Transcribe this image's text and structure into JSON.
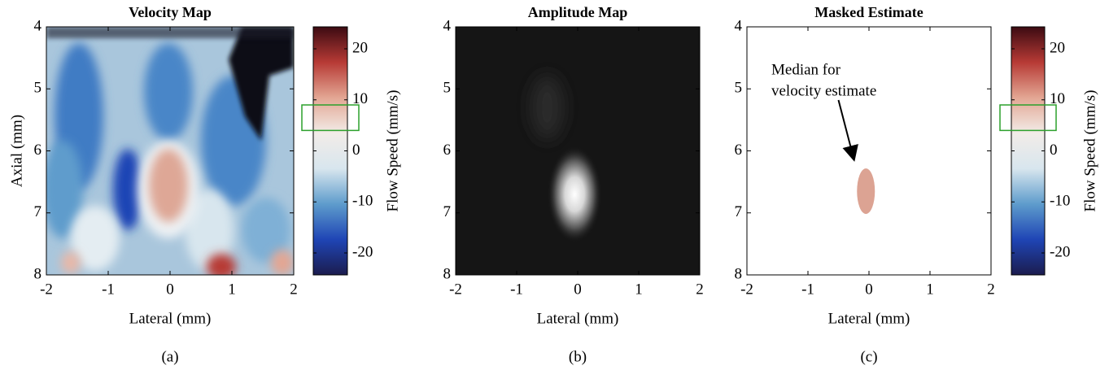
{
  "chart_data": [
    {
      "type": "heatmap",
      "title": "Velocity Map",
      "xlabel": "Lateral (mm)",
      "ylabel": "Axial (mm)",
      "xlim": [
        -2,
        2
      ],
      "ylim": [
        4,
        8
      ],
      "y_reversed": true,
      "xticks": [
        -2,
        -1,
        0,
        1,
        2
      ],
      "yticks": [
        4,
        5,
        6,
        7,
        8
      ],
      "caption": "(a)",
      "colorbar": {
        "label": "Flow Speed (mm/s)",
        "lim": [
          -24.3,
          24.3
        ],
        "ticks": [
          -20,
          -10,
          0,
          10,
          20
        ],
        "colormap": [
          "#1b1c4e",
          "#1f45b5",
          "#5e9ccc",
          "#d8e6ee",
          "#f2ece8",
          "#e3a693",
          "#b73a35",
          "#3c0b12"
        ],
        "highlight": [
          4,
          9
        ],
        "highlight_color": "#2ca02c"
      }
    },
    {
      "type": "heatmap",
      "title": "Amplitude Map",
      "xlabel": "Lateral (mm)",
      "xlim": [
        -2,
        2
      ],
      "ylim": [
        4,
        8
      ],
      "y_reversed": true,
      "xticks": [
        -2,
        -1,
        0,
        1,
        2
      ],
      "yticks": [
        4,
        5,
        6,
        7,
        8
      ],
      "caption": "(b)"
    },
    {
      "type": "heatmap",
      "title": "Masked Estimate",
      "xlabel": "Lateral (mm)",
      "xlim": [
        -2,
        2
      ],
      "ylim": [
        4,
        8
      ],
      "y_reversed": true,
      "xticks": [
        -2,
        -1,
        0,
        1,
        2
      ],
      "yticks": [
        4,
        5,
        6,
        7,
        8
      ],
      "caption": "(c)",
      "annotation": {
        "lines": [
          "Median for",
          "velocity estimate"
        ]
      },
      "colorbar": {
        "label": "Flow Speed (mm/s)",
        "lim": [
          -24.3,
          24.3
        ],
        "ticks": [
          -20,
          -10,
          0,
          10,
          20
        ],
        "colormap": [
          "#1b1c4e",
          "#1f45b5",
          "#5e9ccc",
          "#d8e6ee",
          "#f2ece8",
          "#e3a693",
          "#b73a35",
          "#3c0b12"
        ],
        "highlight": [
          4,
          9
        ],
        "highlight_color": "#2ca02c"
      }
    }
  ]
}
